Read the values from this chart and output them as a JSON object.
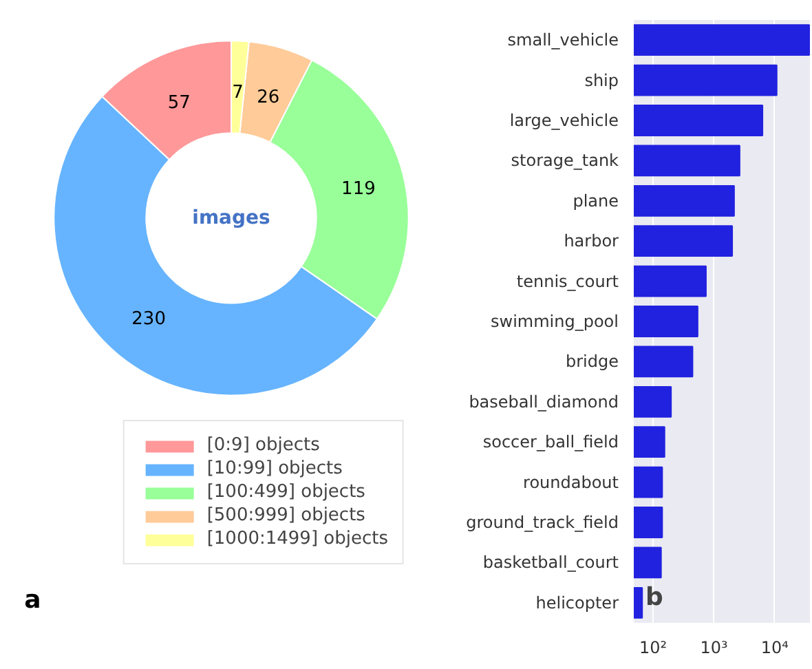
{
  "chart_data": [
    {
      "type": "donut",
      "categories": [
        "[0:9] objects",
        "[10:99] objects",
        "[100:499] objects",
        "[500:999] objects",
        "[1000:1499] objects"
      ],
      "values": [
        57,
        230,
        119,
        26,
        7
      ],
      "colors": [
        "#ff9999",
        "#66b3ff",
        "#99ff99",
        "#ffcc99",
        "#ffff99"
      ],
      "data_labels": true,
      "legend": "bottom",
      "annotations": [
        "images",
        "a"
      ]
    },
    {
      "type": "bar",
      "orientation": "horizontal",
      "categories": [
        "small_vehicle",
        "ship",
        "large_vehicle",
        "storage_tank",
        "plane",
        "harbor",
        "tennis_court",
        "swimming_pool",
        "bridge",
        "baseball_diamond",
        "soccer_ball_field",
        "roundabout",
        "ground_track_field",
        "basketball_court",
        "helicopter"
      ],
      "values": [
        37000,
        10800,
        6300,
        2650,
        2150,
        2000,
        740,
        540,
        445,
        197,
        154,
        141,
        141,
        135,
        66
      ],
      "color": "#2121e0",
      "log": "x",
      "xlim": [
        48,
        38000
      ],
      "xticks": [
        {
          "value": 100,
          "label": "10²"
        },
        {
          "value": 1000,
          "label": "10³"
        },
        {
          "value": 10000,
          "label": "10⁴"
        }
      ],
      "grid": "x",
      "annotations": [
        "b"
      ]
    }
  ]
}
